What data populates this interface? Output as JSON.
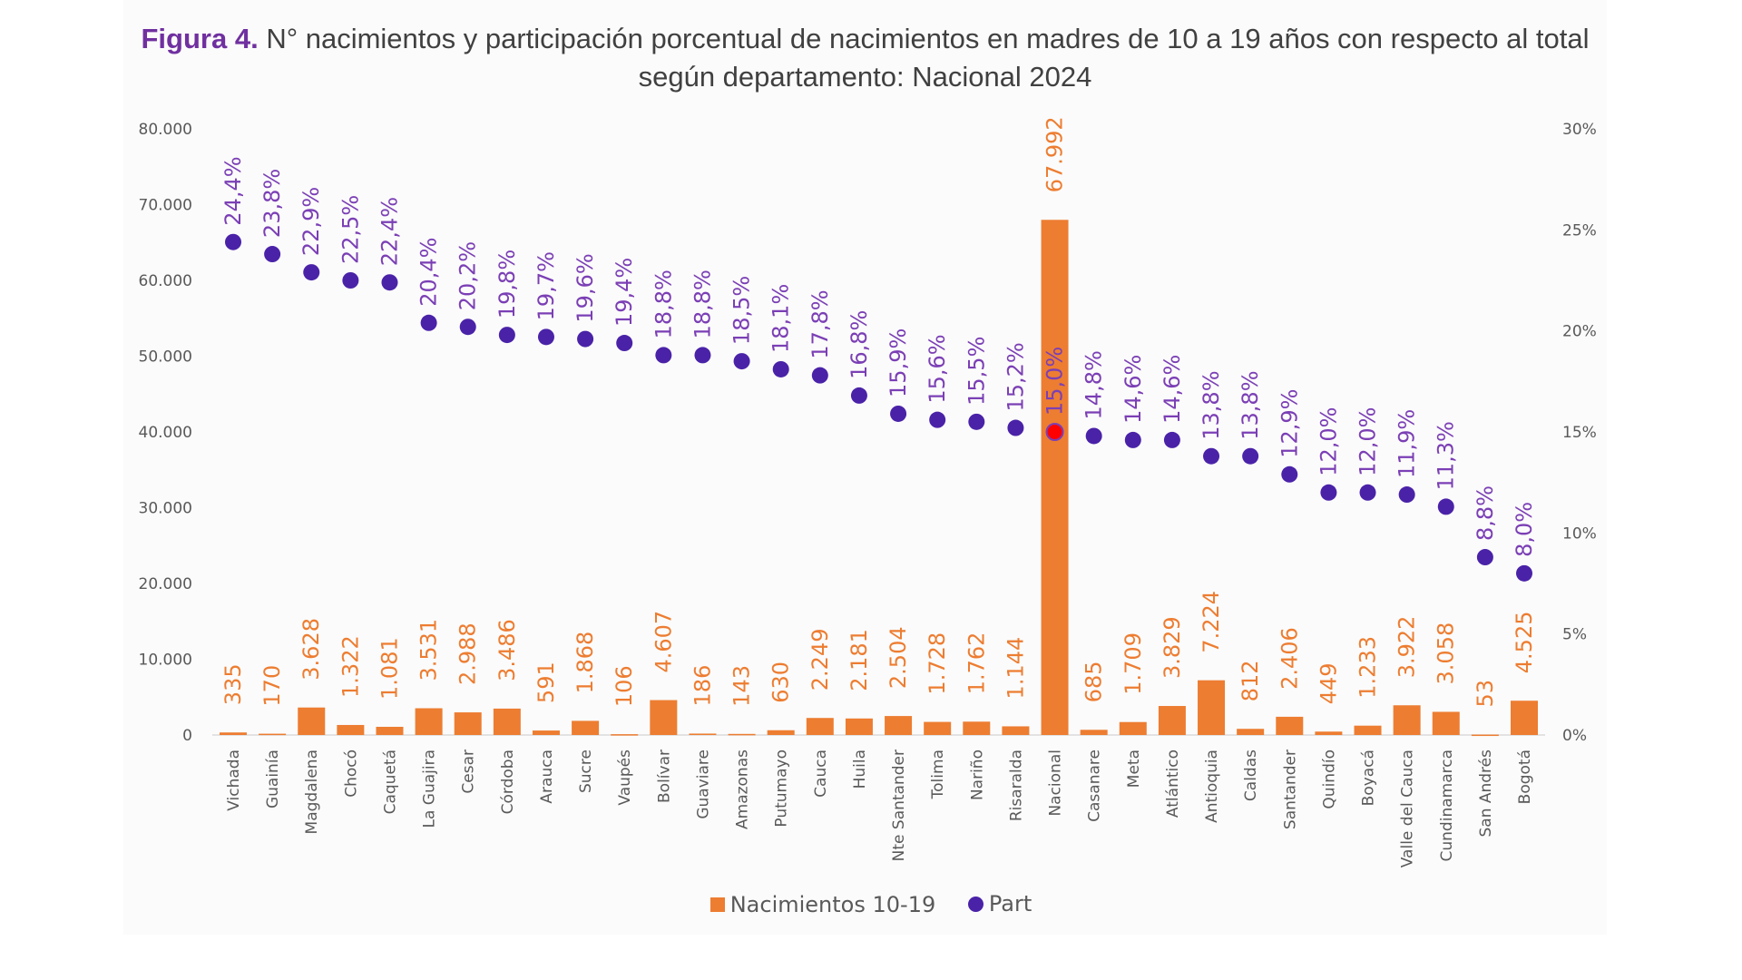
{
  "title_prefix": "Figura 4.",
  "title_text": "N° nacimientos y participación porcentual de nacimientos en madres de 10 a 19 años con respecto al total según departamento: Nacional 2024",
  "chart_data": {
    "type": "bar+scatter",
    "title": "Figura 4. N° nacimientos y participación porcentual de nacimientos en madres de 10 a 19 años con respecto al total según departamento: Nacional 2024",
    "categories": [
      "Vichada",
      "Guainía",
      "Magdalena",
      "Chocó",
      "Caquetá",
      "La Guajira",
      "Cesar",
      "Córdoba",
      "Arauca",
      "Sucre",
      "Vaupés",
      "Bolívar",
      "Guaviare",
      "Amazonas",
      "Putumayo",
      "Cauca",
      "Huila",
      "Nte Santander",
      "Tolima",
      "Nariño",
      "Risaralda",
      "Nacional",
      "Casanare",
      "Meta",
      "Atlántico",
      "Antioquia",
      "Caldas",
      "Santander",
      "Quindío",
      "Boyacá",
      "Valle del Cauca",
      "Cundinamarca",
      "San Andrés",
      "Bogotá"
    ],
    "series": [
      {
        "name": "Nacimientos 10-19",
        "axis": "left",
        "color": "#ed7d31",
        "values": [
          335,
          170,
          3628,
          1322,
          1081,
          3531,
          2988,
          3486,
          591,
          1868,
          106,
          4607,
          186,
          143,
          630,
          2249,
          2181,
          2504,
          1728,
          1762,
          1144,
          67992,
          685,
          1709,
          3829,
          7224,
          812,
          2406,
          449,
          1233,
          3922,
          3058,
          53,
          4525
        ],
        "labels": [
          "335",
          "170",
          "3.628",
          "1.322",
          "1.081",
          "3.531",
          "2.988",
          "3.486",
          "591",
          "1.868",
          "106",
          "4.607",
          "186",
          "143",
          "630",
          "2.249",
          "2.181",
          "2.504",
          "1.728",
          "1.762",
          "1.144",
          "67.992",
          "685",
          "1.709",
          "3.829",
          "7.224",
          "812",
          "2.406",
          "449",
          "1.233",
          "3.922",
          "3.058",
          "53",
          "4.525"
        ]
      },
      {
        "name": "Part",
        "axis": "right",
        "color": "#4a22a8",
        "highlight_color": "#ff0000",
        "highlight_category": "Nacional",
        "values": [
          24.4,
          23.8,
          22.9,
          22.5,
          22.4,
          20.4,
          20.2,
          19.8,
          19.7,
          19.6,
          19.4,
          18.8,
          18.8,
          18.5,
          18.1,
          17.8,
          16.8,
          15.9,
          15.6,
          15.5,
          15.2,
          15.0,
          14.8,
          14.6,
          14.6,
          13.8,
          13.8,
          12.9,
          12.0,
          12.0,
          11.9,
          11.3,
          8.8,
          8.0
        ],
        "labels": [
          "24,4%",
          "23,8%",
          "22,9%",
          "22,5%",
          "22,4%",
          "20,4%",
          "20,2%",
          "19,8%",
          "19,7%",
          "19,6%",
          "19,4%",
          "18,8%",
          "18,8%",
          "18,5%",
          "18,1%",
          "17,8%",
          "16,8%",
          "15,9%",
          "15,6%",
          "15,5%",
          "15,2%",
          "15,0%",
          "14,8%",
          "14,6%",
          "14,6%",
          "13,8%",
          "13,8%",
          "12,9%",
          "12,0%",
          "12,0%",
          "11,9%",
          "11,3%",
          "8,8%",
          "8,0%"
        ]
      }
    ],
    "ylim_left": [
      0,
      80000
    ],
    "yticks_left": [
      "0",
      "10.000",
      "20.000",
      "30.000",
      "40.000",
      "50.000",
      "60.000",
      "70.000",
      "80.000"
    ],
    "ylim_right": [
      0,
      30
    ],
    "yticks_right": [
      "0%",
      "5%",
      "10%",
      "15%",
      "20%",
      "25%",
      "30%"
    ],
    "grid": false,
    "legend_position": "bottom"
  },
  "legend": {
    "bars": "Nacimientos 10-19",
    "dots": "Part"
  }
}
